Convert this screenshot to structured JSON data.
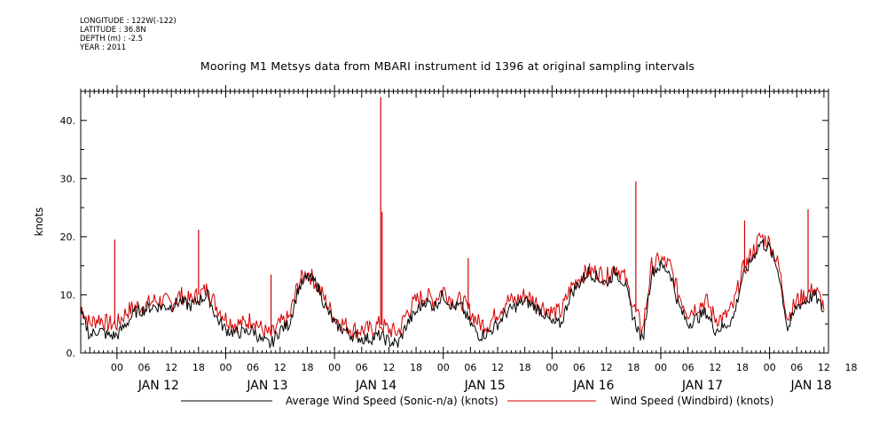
{
  "header": {
    "longitude": "LONGITUDE : 122W(-122)",
    "latitude": "LATITUDE : 36.8N",
    "depth": "DEPTH (m) : -2.5",
    "year": "YEAR : 2011"
  },
  "chart_data": {
    "type": "line",
    "title": "Mooring M1 Metsys data from MBARI instrument id 1396 at original sampling intervals",
    "ylabel": "knots",
    "xlabel": "",
    "ylim": [
      0,
      45
    ],
    "yticks": [
      "0.",
      "10.",
      "20.",
      "30.",
      "40."
    ],
    "xlim_hours": [
      -8,
      157
    ],
    "hour_ticks": [
      "00",
      "06",
      "12",
      "18",
      "00",
      "06",
      "12",
      "18",
      "00",
      "06",
      "12",
      "18",
      "00",
      "06",
      "12",
      "18",
      "00",
      "06",
      "12",
      "18",
      "00",
      "06",
      "12",
      "18",
      "00",
      "06",
      "12",
      "18"
    ],
    "day_labels": [
      "JAN 12",
      "JAN 13",
      "JAN 14",
      "JAN 15",
      "JAN 16",
      "JAN 17",
      "JAN 18"
    ],
    "grid": false,
    "legend_position": "bottom",
    "series": [
      {
        "name": "Average Wind Speed (Sonic-n/a) (knots)",
        "color": "#000000",
        "x": [
          -8,
          -6,
          -4,
          -2,
          0,
          2,
          4,
          6,
          8,
          10,
          12,
          14,
          16,
          18,
          20,
          22,
          24,
          26,
          28,
          30,
          32,
          34,
          36,
          38,
          40,
          42,
          44,
          46,
          48,
          50,
          52,
          54,
          56,
          58,
          60,
          62,
          64,
          66,
          68,
          70,
          72,
          74,
          76,
          78,
          80,
          82,
          84,
          86,
          88,
          90,
          92,
          94,
          96,
          98,
          100,
          102,
          104,
          106,
          108,
          110,
          112,
          114,
          116,
          118,
          120,
          122,
          124,
          126,
          128,
          130,
          132,
          134,
          136,
          138,
          140,
          142,
          144,
          146,
          148,
          150,
          152,
          154,
          156
        ],
        "values": [
          7,
          3,
          4,
          3,
          3,
          5,
          7,
          7.5,
          8,
          8,
          8,
          9,
          8,
          9,
          10,
          6,
          4,
          3.5,
          3.5,
          4,
          2,
          1.5,
          4,
          5,
          11,
          13,
          12,
          8,
          5,
          4,
          3,
          2.5,
          2.5,
          3,
          2,
          1.5,
          5,
          7,
          9,
          8,
          10,
          8,
          8,
          5,
          3,
          3.5,
          5,
          7,
          8,
          9,
          8,
          7,
          5,
          5,
          10,
          12,
          14,
          13,
          12,
          14,
          12,
          6,
          2,
          14,
          15,
          14,
          8,
          5,
          6,
          7,
          4,
          4.5,
          6,
          13,
          16,
          19,
          18,
          14,
          4,
          8,
          9,
          10,
          7
        ]
      },
      {
        "name": "Wind Speed (Windbird) (knots)",
        "color": "#d40000",
        "x": [
          -8,
          -6,
          -4,
          -2,
          0,
          2,
          4,
          6,
          8,
          10,
          12,
          14,
          16,
          18,
          20,
          22,
          24,
          26,
          28,
          30,
          32,
          34,
          36,
          38,
          40,
          42,
          44,
          46,
          48,
          50,
          52,
          54,
          56,
          58,
          60,
          62,
          64,
          66,
          68,
          70,
          72,
          74,
          76,
          78,
          80,
          82,
          84,
          86,
          88,
          90,
          92,
          94,
          96,
          98,
          100,
          102,
          104,
          106,
          108,
          110,
          112,
          114,
          116,
          118,
          120,
          122,
          124,
          126,
          128,
          130,
          132,
          134,
          136,
          138,
          140,
          142,
          144,
          146,
          148,
          150,
          152,
          154,
          156
        ],
        "values": [
          8,
          5,
          6,
          5,
          5,
          7,
          8,
          8,
          9,
          9,
          8.5,
          10,
          9,
          10,
          11,
          8,
          6,
          5,
          5,
          6,
          4,
          3,
          5,
          6,
          12,
          14,
          12,
          9,
          6,
          5,
          4,
          4,
          4,
          5,
          4,
          3.5,
          7,
          9,
          10,
          9,
          11,
          9,
          9,
          7,
          5,
          5,
          7,
          9,
          9,
          10,
          9,
          8,
          7,
          7,
          11,
          13,
          14,
          14,
          13,
          15,
          13,
          8,
          4,
          15,
          16,
          15,
          10,
          7,
          8,
          9,
          6,
          6,
          8,
          14,
          17,
          20,
          19,
          15,
          6,
          9,
          10,
          11,
          8
        ]
      }
    ],
    "spikes": [
      {
        "series": 1,
        "x": -0.5,
        "value": 19.5
      },
      {
        "series": 1,
        "x": 18,
        "value": 21.2
      },
      {
        "series": 1,
        "x": 34,
        "value": 13.5
      },
      {
        "series": 1,
        "x": 58.2,
        "value": 44
      },
      {
        "series": 1,
        "x": 58.5,
        "value": 24.3
      },
      {
        "series": 1,
        "x": 77.5,
        "value": 16.3
      },
      {
        "series": 1,
        "x": 114.5,
        "value": 29.5
      },
      {
        "series": 1,
        "x": 138.5,
        "value": 22.8
      },
      {
        "series": 1,
        "x": 152.5,
        "value": 24.7
      }
    ]
  }
}
